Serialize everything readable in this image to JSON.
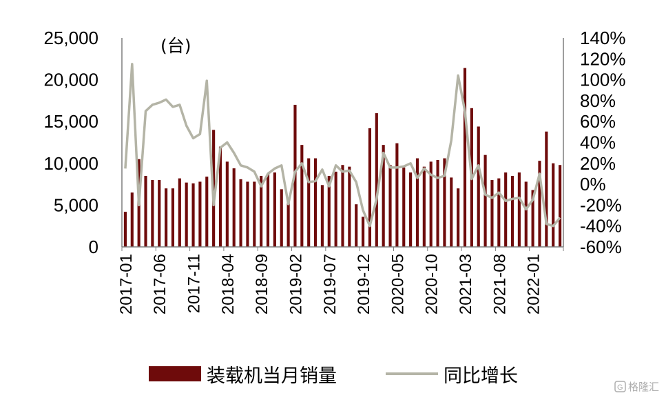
{
  "chart_data": {
    "type": "bar",
    "unit_label": "(台)",
    "y_left": {
      "ylim": [
        0,
        25000
      ],
      "ticks": [
        "0",
        "5,000",
        "10,000",
        "15,000",
        "20,000",
        "25,000"
      ]
    },
    "y_right": {
      "ylim": [
        -60,
        140
      ],
      "ticks": [
        "-60%",
        "-40%",
        "-20%",
        "0%",
        "20%",
        "40%",
        "60%",
        "80%",
        "100%",
        "120%",
        "140%"
      ]
    },
    "x_tick_labels": [
      "2017-01",
      "2017-06",
      "2017-11",
      "2018-04",
      "2018-09",
      "2019-02",
      "2019-07",
      "2019-12",
      "2020-05",
      "2020-10",
      "2021-03",
      "2021-08",
      "2022-01"
    ],
    "categories": [
      "2017-01",
      "2017-02",
      "2017-03",
      "2017-04",
      "2017-05",
      "2017-06",
      "2017-07",
      "2017-08",
      "2017-09",
      "2017-10",
      "2017-11",
      "2017-12",
      "2018-01",
      "2018-02",
      "2018-03",
      "2018-04",
      "2018-05",
      "2018-06",
      "2018-07",
      "2018-08",
      "2018-09",
      "2018-10",
      "2018-11",
      "2018-12",
      "2019-01",
      "2019-02",
      "2019-03",
      "2019-04",
      "2019-05",
      "2019-06",
      "2019-07",
      "2019-08",
      "2019-09",
      "2019-10",
      "2019-11",
      "2019-12",
      "2020-01",
      "2020-02",
      "2020-03",
      "2020-04",
      "2020-05",
      "2020-06",
      "2020-07",
      "2020-08",
      "2020-09",
      "2020-10",
      "2020-11",
      "2020-12",
      "2021-01",
      "2021-02",
      "2021-03",
      "2021-04",
      "2021-05",
      "2021-06",
      "2021-07",
      "2021-08",
      "2021-09",
      "2021-10",
      "2021-11",
      "2021-12",
      "2022-01",
      "2022-02",
      "2022-03",
      "2022-04",
      "2022-05"
    ],
    "series": [
      {
        "name": "装载机当月销量",
        "type": "bar",
        "axis": "left",
        "values": [
          4200,
          6500,
          10500,
          8500,
          8000,
          8000,
          7000,
          7000,
          8200,
          7700,
          7600,
          7800,
          8400,
          14000,
          12000,
          10200,
          9400,
          8100,
          7800,
          7800,
          8500,
          8700,
          8900,
          6900,
          5900,
          17000,
          12200,
          10600,
          10600,
          7400,
          8500,
          9000,
          9800,
          9600,
          5100,
          3600,
          14200,
          16000,
          12200,
          9800,
          12400,
          9500,
          8900,
          10600,
          9600,
          10200,
          10400,
          10600,
          8300,
          7000,
          21400,
          16600,
          14400,
          11000,
          8000,
          8200,
          8900,
          8500,
          8900,
          7800,
          6800,
          10300,
          13800,
          10000,
          9800
        ]
      },
      {
        "name": "同比增长",
        "type": "line",
        "axis": "right",
        "values": [
          15,
          115,
          -20,
          70,
          76,
          78,
          81,
          74,
          76,
          56,
          44,
          48,
          99,
          -20,
          35,
          40,
          30,
          18,
          16,
          12,
          -2,
          10,
          15,
          18,
          -19,
          12,
          20,
          2,
          3,
          14,
          -2,
          18,
          12,
          13,
          2,
          -25,
          -40,
          -14,
          30,
          16,
          16,
          17,
          20,
          6,
          15,
          9,
          6,
          8,
          42,
          104,
          70,
          5,
          18,
          -10,
          -13,
          -8,
          -16,
          -14,
          -13,
          -24,
          -15,
          10,
          -38,
          -40,
          -32
        ]
      }
    ]
  },
  "legend": {
    "bar_label": "装载机当月销量",
    "line_label": "同比增长"
  },
  "colors": {
    "bar": "#6e0b0b",
    "line": "#b4b4a6",
    "axis": "#7f7f7f",
    "text": "#000000"
  },
  "watermark": "格隆汇",
  "watermark_icon": "g-logo-icon"
}
